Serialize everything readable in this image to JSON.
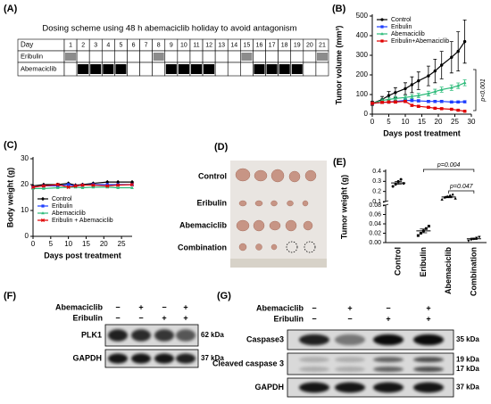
{
  "panel_A": {
    "panel": "(A)",
    "title": "Dosing scheme using 48 h abemaciclib holiday to avoid antagonism",
    "header": "Day",
    "days": [
      1,
      2,
      3,
      4,
      5,
      6,
      7,
      8,
      9,
      10,
      11,
      12,
      13,
      14,
      15,
      16,
      17,
      18,
      19,
      20,
      21
    ],
    "rows": [
      {
        "name": "Eribulin",
        "color": "#8c8c8c",
        "dosed_days": [
          1,
          8,
          15,
          21
        ]
      },
      {
        "name": "Abemaciclib",
        "color": "#000000",
        "dosed_days": [
          2,
          3,
          4,
          5,
          9,
          10,
          11,
          12,
          16,
          17,
          18,
          19
        ]
      }
    ]
  },
  "chart_data": [
    {
      "type": "line",
      "panel": "(B)",
      "xlabel": "Days post treatment",
      "ylabel": "Tumor volume (mm³)",
      "x": [
        0,
        3,
        5,
        7,
        10,
        12,
        14,
        17,
        19,
        21,
        24,
        26,
        28
      ],
      "xlim": [
        0,
        30
      ],
      "xticks": [
        0,
        5,
        10,
        15,
        20,
        25,
        30
      ],
      "ylim": [
        0,
        500
      ],
      "yticks": [
        0,
        100,
        200,
        300,
        400,
        500
      ],
      "legend": "upper left",
      "annotation": "p<0.001",
      "series": [
        {
          "name": "Control",
          "color": "#000000",
          "marker": "circle",
          "values": [
            55,
            75,
            95,
            110,
            130,
            150,
            170,
            195,
            220,
            250,
            290,
            320,
            370
          ],
          "errors": [
            10,
            15,
            20,
            25,
            30,
            40,
            45,
            50,
            60,
            70,
            80,
            100,
            110
          ]
        },
        {
          "name": "Eribulin",
          "color": "#1f3fff",
          "marker": "square",
          "values": [
            55,
            60,
            62,
            65,
            70,
            70,
            68,
            65,
            65,
            65,
            62,
            62,
            63
          ],
          "errors": [
            5,
            6,
            6,
            6,
            7,
            7,
            6,
            6,
            6,
            6,
            5,
            5,
            5
          ]
        },
        {
          "name": "Abemaciclib",
          "color": "#2dbb7a",
          "marker": "triangle",
          "values": [
            55,
            70,
            75,
            80,
            85,
            90,
            95,
            105,
            115,
            125,
            135,
            145,
            160
          ],
          "errors": [
            5,
            8,
            8,
            9,
            10,
            10,
            11,
            12,
            12,
            13,
            14,
            14,
            15
          ]
        },
        {
          "name": "Eribulin+Abemaciclib",
          "color": "#e00000",
          "marker": "square",
          "values": [
            55,
            60,
            62,
            62,
            65,
            45,
            40,
            35,
            30,
            28,
            25,
            20,
            15
          ],
          "errors": [
            5,
            6,
            6,
            6,
            6,
            5,
            5,
            4,
            4,
            4,
            3,
            3,
            3
          ]
        }
      ]
    },
    {
      "type": "line",
      "panel": "(C)",
      "xlabel": "Days post treatment",
      "ylabel": "Body weight (g)",
      "x": [
        0,
        3,
        7,
        10,
        12,
        14,
        17,
        21,
        24,
        28
      ],
      "xlim": [
        0,
        28
      ],
      "xticks": [
        0,
        5,
        10,
        15,
        20,
        25
      ],
      "ylim": [
        0,
        30
      ],
      "yticks": [
        0,
        10,
        20,
        30
      ],
      "legend": "lower left",
      "series": [
        {
          "name": "Control",
          "color": "#000000",
          "marker": "diamond",
          "values": [
            19.5,
            20,
            20,
            20.5,
            19.8,
            20,
            20.5,
            21,
            21,
            21
          ]
        },
        {
          "name": "Eribulin",
          "color": "#1f3fff",
          "marker": "square",
          "values": [
            19,
            19.5,
            19.5,
            20,
            19.5,
            19.8,
            20,
            20,
            20,
            20
          ]
        },
        {
          "name": "Abemaciclib",
          "color": "#2dbb7a",
          "marker": "triangle",
          "values": [
            18.5,
            18.5,
            18.8,
            19,
            19,
            18.8,
            19,
            19,
            18.8,
            18.8
          ]
        },
        {
          "name": "Eribulin + Abemaciclib",
          "color": "#e00000",
          "marker": "cross",
          "values": [
            19,
            19.5,
            20,
            19,
            19.5,
            19.8,
            19.8,
            19.5,
            19.8,
            20
          ]
        }
      ]
    },
    {
      "type": "strip",
      "panel": "(E)",
      "ylabel": "Tumor weight (g)",
      "categories": [
        "Control",
        "Eribulin",
        "Abemaciclib",
        "Combination"
      ],
      "markers": [
        "circle",
        "square",
        "triangle",
        "down"
      ],
      "values": [
        [
          0.25,
          0.27,
          0.3,
          0.32,
          0.28
        ],
        [
          0.015,
          0.02,
          0.025,
          0.03,
          0.035
        ],
        [
          0.12,
          0.14,
          0.15,
          0.16,
          0.17,
          0.13
        ],
        [
          0.004,
          0.006,
          0.008,
          0.01,
          0.012
        ]
      ],
      "means": [
        0.284,
        0.025,
        0.145,
        0.008
      ],
      "errors": [
        0.013,
        0.004,
        0.007,
        0.0015
      ],
      "ylim": [
        0,
        0.08
      ],
      "yticks": [
        {
          "value": 0,
          "label": "0.00"
        },
        0.02,
        0.04,
        0.06,
        0.08
      ],
      "ylim_upper": [
        0.1,
        0.4
      ],
      "yticks_upper": [
        0.1,
        0.2,
        0.3,
        0.4
      ],
      "annotations": [
        "p=0.004",
        "p=0.047"
      ]
    }
  ],
  "panel_D": {
    "panel": "(D)",
    "rows": [
      "Control",
      "Eribulin",
      "Abemaciclib",
      "Combination"
    ]
  },
  "panel_F": {
    "panel": "(F)",
    "treatments": [
      {
        "name": "Abemaciclib",
        "signs": [
          "−",
          "+",
          "−",
          "+"
        ]
      },
      {
        "name": "Eribulin",
        "signs": [
          "−",
          "−",
          "+",
          "+"
        ]
      }
    ],
    "bands": [
      {
        "name": "PLK1",
        "sizes": [
          "62 kDa"
        ]
      },
      {
        "name": "GAPDH",
        "sizes": [
          "37 kDa"
        ]
      }
    ]
  },
  "panel_G": {
    "panel": "(G)",
    "treatments": [
      {
        "name": "Abemaciclib",
        "signs": [
          "−",
          "+",
          "−",
          "+"
        ]
      },
      {
        "name": "Eribulin",
        "signs": [
          "−",
          "−",
          "+",
          "+"
        ]
      }
    ],
    "bands": [
      {
        "name": "Caspase3",
        "sizes": [
          "35 kDa"
        ]
      },
      {
        "name": "Cleaved caspase 3",
        "sizes": [
          "19 kDa",
          "17 kDa"
        ]
      },
      {
        "name": "GAPDH",
        "sizes": [
          "37 kDa"
        ]
      }
    ]
  }
}
